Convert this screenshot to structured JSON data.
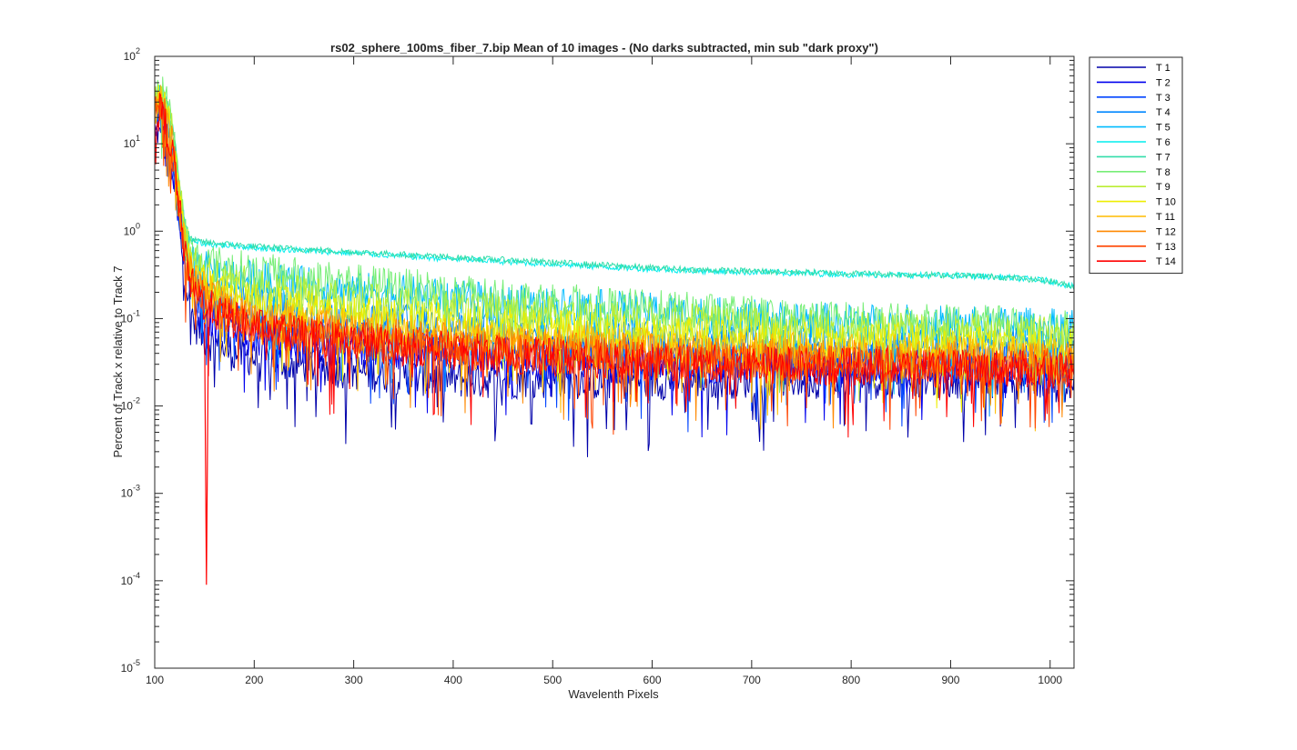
{
  "chart_data": {
    "type": "line",
    "title": "rs02_sphere_100ms_fiber_7.bip  Mean of 10 images - (No darks subtracted, min sub \"dark proxy\")",
    "xlabel": "Wavelenth Pixels",
    "ylabel": "Percent of Track x relative to Track 7",
    "xlim": [
      100,
      1024
    ],
    "ylim": [
      1e-05,
      100
    ],
    "yscale": "log",
    "grid": false,
    "legend_position": "outside-right-top",
    "x_ticks": [
      "100",
      "200",
      "300",
      "400",
      "500",
      "600",
      "700",
      "800",
      "900",
      "1000"
    ],
    "y_ticks": [
      {
        "base": "10",
        "exp": "-5"
      },
      {
        "base": "10",
        "exp": "-4"
      },
      {
        "base": "10",
        "exp": "-3"
      },
      {
        "base": "10",
        "exp": "-2"
      },
      {
        "base": "10",
        "exp": "-1"
      },
      {
        "base": "10",
        "exp": "0"
      },
      {
        "base": "10",
        "exp": "1"
      },
      {
        "base": "10",
        "exp": "2"
      }
    ],
    "x": [
      100,
      105,
      110,
      115,
      120,
      125,
      130,
      135,
      140,
      150,
      160,
      180,
      200,
      250,
      300,
      350,
      400,
      450,
      500,
      550,
      600,
      650,
      700,
      750,
      800,
      850,
      900,
      950,
      1000,
      1024
    ],
    "series": [
      {
        "name": "T 1",
        "color": "#0000aa",
        "values": [
          12,
          16,
          10,
          6,
          3,
          1.0,
          0.35,
          0.15,
          0.09,
          0.06,
          0.05,
          0.04,
          0.035,
          0.03,
          0.025,
          0.022,
          0.02,
          0.02,
          0.02,
          0.019,
          0.019,
          0.02,
          0.02,
          0.02,
          0.02,
          0.02,
          0.02,
          0.02,
          0.018,
          0.018
        ]
      },
      {
        "name": "T 2",
        "color": "#0000ee",
        "values": [
          15,
          20,
          14,
          8,
          4,
          1.4,
          0.5,
          0.22,
          0.14,
          0.1,
          0.09,
          0.07,
          0.06,
          0.05,
          0.045,
          0.04,
          0.035,
          0.033,
          0.031,
          0.03,
          0.03,
          0.03,
          0.029,
          0.029,
          0.028,
          0.028,
          0.028,
          0.028,
          0.027,
          0.027
        ]
      },
      {
        "name": "T 3",
        "color": "#0044ff",
        "values": [
          18,
          24,
          18,
          10,
          5,
          1.6,
          0.6,
          0.3,
          0.2,
          0.15,
          0.13,
          0.1,
          0.08,
          0.065,
          0.058,
          0.052,
          0.048,
          0.045,
          0.042,
          0.04,
          0.038,
          0.037,
          0.036,
          0.035,
          0.034,
          0.033,
          0.033,
          0.032,
          0.032,
          0.032
        ]
      },
      {
        "name": "T 4",
        "color": "#0088ff",
        "values": [
          22,
          28,
          22,
          12,
          6,
          2.0,
          0.8,
          0.45,
          0.3,
          0.24,
          0.2,
          0.17,
          0.15,
          0.12,
          0.1,
          0.09,
          0.08,
          0.073,
          0.068,
          0.064,
          0.06,
          0.058,
          0.056,
          0.054,
          0.052,
          0.05,
          0.05,
          0.048,
          0.047,
          0.047
        ]
      },
      {
        "name": "T 5",
        "color": "#00bbff",
        "values": [
          26,
          32,
          26,
          15,
          7,
          2.4,
          1.0,
          0.55,
          0.45,
          0.38,
          0.34,
          0.3,
          0.28,
          0.24,
          0.21,
          0.19,
          0.17,
          0.15,
          0.14,
          0.13,
          0.12,
          0.11,
          0.1,
          0.095,
          0.09,
          0.088,
          0.085,
          0.083,
          0.08,
          0.08
        ]
      },
      {
        "name": "T 6",
        "color": "#00eeee",
        "values": [
          30,
          40,
          32,
          20,
          10,
          3.0,
          1.2,
          0.8,
          0.75,
          0.72,
          0.7,
          0.68,
          0.65,
          0.6,
          0.56,
          0.52,
          0.48,
          0.45,
          0.42,
          0.39,
          0.37,
          0.35,
          0.34,
          0.33,
          0.32,
          0.315,
          0.31,
          0.3,
          0.27,
          0.23
        ]
      },
      {
        "name": "T 7",
        "color": "#33ddaa",
        "values": [
          35,
          45,
          38,
          24,
          12,
          3.5,
          1.3,
          0.85,
          0.78,
          0.75,
          0.73,
          0.7,
          0.67,
          0.62,
          0.58,
          0.54,
          0.5,
          0.47,
          0.44,
          0.41,
          0.38,
          0.36,
          0.35,
          0.34,
          0.33,
          0.32,
          0.315,
          0.3,
          0.27,
          0.23
        ]
      },
      {
        "name": "T 8",
        "color": "#77ee77",
        "values": [
          32,
          42,
          35,
          22,
          11,
          3.2,
          1.1,
          0.6,
          0.5,
          0.45,
          0.42,
          0.38,
          0.35,
          0.3,
          0.26,
          0.23,
          0.2,
          0.18,
          0.16,
          0.14,
          0.13,
          0.12,
          0.11,
          0.1,
          0.095,
          0.09,
          0.088,
          0.085,
          0.08,
          0.08
        ]
      },
      {
        "name": "T 9",
        "color": "#bbee33",
        "values": [
          28,
          36,
          30,
          18,
          9,
          2.8,
          0.95,
          0.5,
          0.4,
          0.34,
          0.3,
          0.26,
          0.23,
          0.19,
          0.16,
          0.14,
          0.13,
          0.12,
          0.11,
          0.1,
          0.095,
          0.09,
          0.085,
          0.08,
          0.076,
          0.073,
          0.07,
          0.068,
          0.065,
          0.065
        ]
      },
      {
        "name": "T 10",
        "color": "#eeee00",
        "values": [
          25,
          32,
          26,
          15,
          7.5,
          2.4,
          0.8,
          0.42,
          0.32,
          0.26,
          0.22,
          0.18,
          0.16,
          0.13,
          0.11,
          0.1,
          0.09,
          0.082,
          0.076,
          0.07,
          0.066,
          0.062,
          0.06,
          0.058,
          0.056,
          0.054,
          0.052,
          0.05,
          0.05,
          0.05
        ]
      },
      {
        "name": "T 11",
        "color": "#ffbb00",
        "values": [
          24,
          30,
          24,
          14,
          7,
          2.2,
          0.7,
          0.38,
          0.28,
          0.22,
          0.18,
          0.14,
          0.12,
          0.095,
          0.08,
          0.07,
          0.063,
          0.058,
          0.054,
          0.05,
          0.047,
          0.045,
          0.043,
          0.042,
          0.041,
          0.04,
          0.039,
          0.038,
          0.037,
          0.037
        ]
      },
      {
        "name": "T 12",
        "color": "#ff8800",
        "values": [
          22,
          28,
          22,
          13,
          6.5,
          2.0,
          0.65,
          0.34,
          0.24,
          0.18,
          0.15,
          0.12,
          0.1,
          0.08,
          0.068,
          0.06,
          0.055,
          0.05,
          0.046,
          0.043,
          0.041,
          0.039,
          0.037,
          0.036,
          0.035,
          0.034,
          0.033,
          0.033,
          0.032,
          0.032
        ]
      },
      {
        "name": "T 13",
        "color": "#ff4400",
        "values": [
          20,
          26,
          20,
          12,
          6,
          1.8,
          0.6,
          0.3,
          0.22,
          0.16,
          0.13,
          0.1,
          0.085,
          0.068,
          0.058,
          0.051,
          0.046,
          0.042,
          0.039,
          0.036,
          0.034,
          0.033,
          0.032,
          0.031,
          0.03,
          0.03,
          0.029,
          0.029,
          0.028,
          0.028
        ]
      },
      {
        "name": "T 14",
        "color": "#ff0000",
        "values": [
          18,
          24,
          18,
          11,
          5.5,
          1.7,
          0.55,
          0.28,
          0.2,
          0.15,
          0.12,
          0.095,
          0.08,
          0.064,
          0.054,
          0.047,
          0.043,
          0.039,
          0.036,
          0.034,
          0.032,
          0.031,
          0.03,
          0.029,
          0.028,
          0.028,
          0.027,
          0.027,
          0.026,
          0.026
        ]
      }
    ]
  }
}
